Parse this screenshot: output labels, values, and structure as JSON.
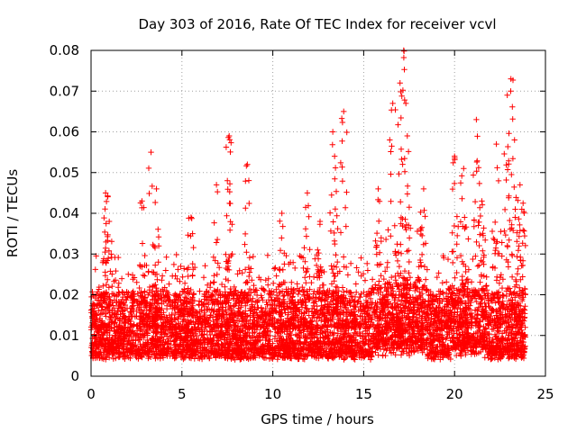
{
  "chart_data": {
    "type": "scatter",
    "title": "Day 303 of 2016, Rate Of TEC Index for receiver vcvl",
    "xlabel": "GPS time / hours",
    "ylabel": "ROTI / TECUs",
    "xlim": [
      0,
      25
    ],
    "ylim": [
      0,
      0.08
    ],
    "xticks": [
      0,
      5,
      10,
      15,
      20,
      25
    ],
    "xtick_labels": [
      "0",
      "5",
      "10",
      "15",
      "20",
      "25"
    ],
    "yticks": [
      0,
      0.01,
      0.02,
      0.03,
      0.04,
      0.05,
      0.06,
      0.07,
      0.08
    ],
    "ytick_labels": [
      "0",
      "0.01",
      "0.02",
      "0.03",
      "0.04",
      "0.05",
      "0.06",
      "0.07",
      "0.08"
    ],
    "grid": true,
    "marker": "+",
    "marker_color": "#ff0000",
    "x_data_range": [
      0,
      23.9
    ],
    "baseline_range": [
      0.004,
      0.02
    ],
    "peaks": [
      {
        "x": 0.8,
        "y": 0.045
      },
      {
        "x": 1.0,
        "y": 0.038
      },
      {
        "x": 2.8,
        "y": 0.043
      },
      {
        "x": 3.3,
        "y": 0.055
      },
      {
        "x": 3.6,
        "y": 0.046
      },
      {
        "x": 5.5,
        "y": 0.039
      },
      {
        "x": 6.9,
        "y": 0.047
      },
      {
        "x": 7.5,
        "y": 0.048
      },
      {
        "x": 7.6,
        "y": 0.059
      },
      {
        "x": 8.6,
        "y": 0.052
      },
      {
        "x": 10.5,
        "y": 0.04
      },
      {
        "x": 11.9,
        "y": 0.045
      },
      {
        "x": 12.6,
        "y": 0.038
      },
      {
        "x": 13.3,
        "y": 0.06
      },
      {
        "x": 13.9,
        "y": 0.065
      },
      {
        "x": 13.4,
        "y": 0.054
      },
      {
        "x": 15.8,
        "y": 0.046
      },
      {
        "x": 16.6,
        "y": 0.067
      },
      {
        "x": 17.0,
        "y": 0.072
      },
      {
        "x": 17.2,
        "y": 0.08
      },
      {
        "x": 17.4,
        "y": 0.059
      },
      {
        "x": 18.3,
        "y": 0.046
      },
      {
        "x": 20.0,
        "y": 0.054
      },
      {
        "x": 20.5,
        "y": 0.051
      },
      {
        "x": 21.2,
        "y": 0.063
      },
      {
        "x": 21.5,
        "y": 0.043
      },
      {
        "x": 22.3,
        "y": 0.057
      },
      {
        "x": 22.9,
        "y": 0.069
      },
      {
        "x": 23.1,
        "y": 0.073
      },
      {
        "x": 23.3,
        "y": 0.058
      },
      {
        "x": 23.6,
        "y": 0.047
      },
      {
        "x": 23.7,
        "y": 0.041
      }
    ]
  }
}
